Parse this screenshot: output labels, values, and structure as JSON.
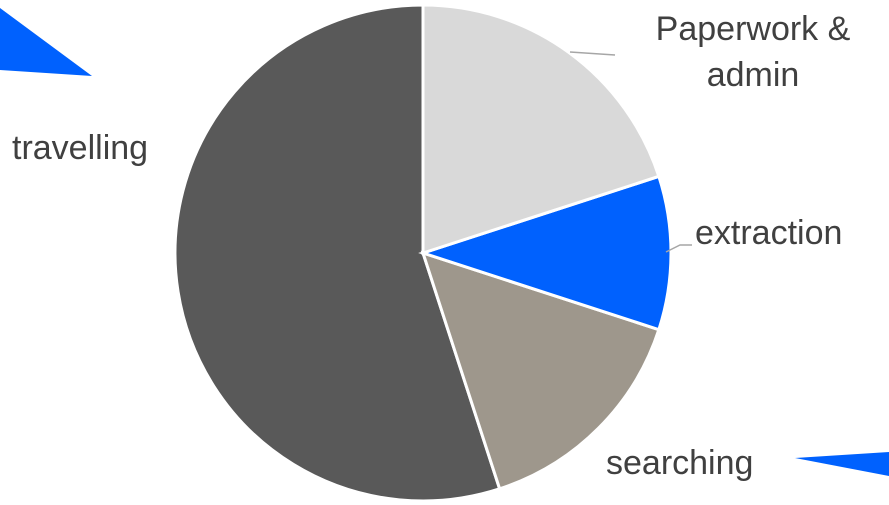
{
  "chart_data": {
    "type": "pie",
    "categories": [
      "Paperwork & admin",
      "extraction",
      "searching",
      "travelling"
    ],
    "values": [
      20,
      10,
      15,
      55
    ],
    "colors": [
      "#d9d9d9",
      "#0061fe",
      "#9e978c",
      "#595959"
    ]
  }
}
